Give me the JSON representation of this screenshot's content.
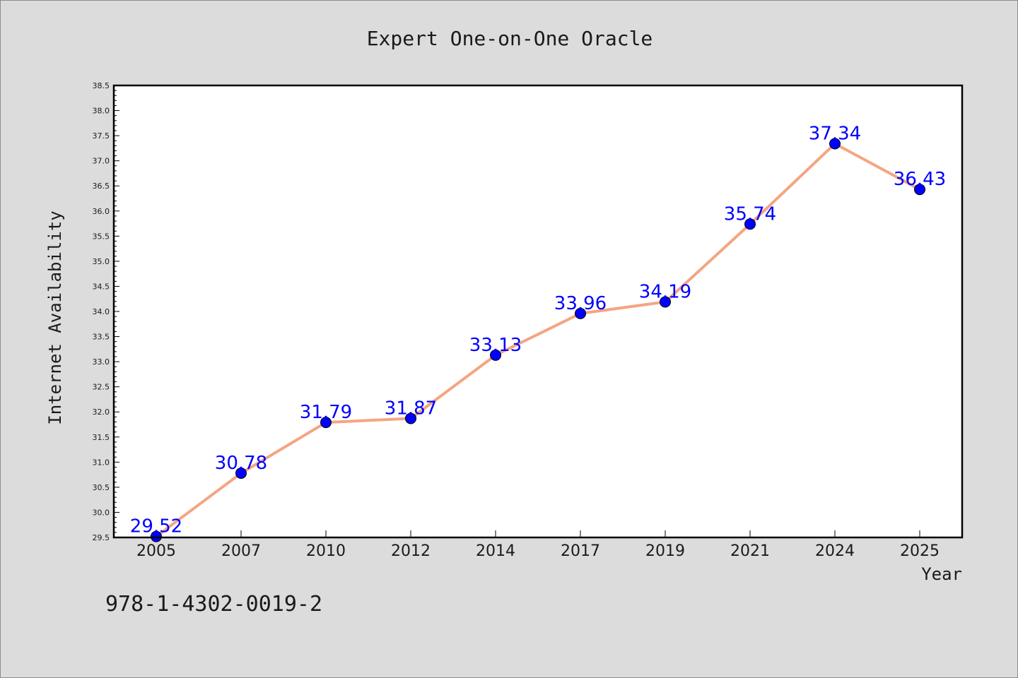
{
  "chart_data": {
    "type": "line",
    "title": "Expert One-on-One Oracle",
    "xlabel": "Year",
    "ylabel": "Internet Availability",
    "categories": [
      "2005",
      "2007",
      "2010",
      "2012",
      "2014",
      "2017",
      "2019",
      "2021",
      "2024",
      "2025"
    ],
    "values": [
      29.52,
      30.78,
      31.79,
      31.87,
      33.13,
      33.96,
      34.19,
      35.74,
      37.34,
      36.43
    ],
    "value_labels": [
      "29.52",
      "30.78",
      "31.79",
      "31.87",
      "33.13",
      "33.96",
      "34.19",
      "35.74",
      "37.34",
      "36.43"
    ],
    "ylim": [
      29.5,
      38.5
    ],
    "y_ticks": [
      "29.5",
      "30.0",
      "30.5",
      "31.0",
      "31.5",
      "32.0",
      "32.5",
      "33.0",
      "33.5",
      "34.0",
      "34.5",
      "35.0",
      "35.5",
      "36.0",
      "36.5",
      "37.0",
      "37.5",
      "38.0",
      "38.5"
    ],
    "grid": false,
    "legend": "none",
    "line_color": "#f4a582",
    "marker_color": "#0000ff",
    "label_color": "#0000ff",
    "annotation": "978-1-4302-0019-2"
  }
}
